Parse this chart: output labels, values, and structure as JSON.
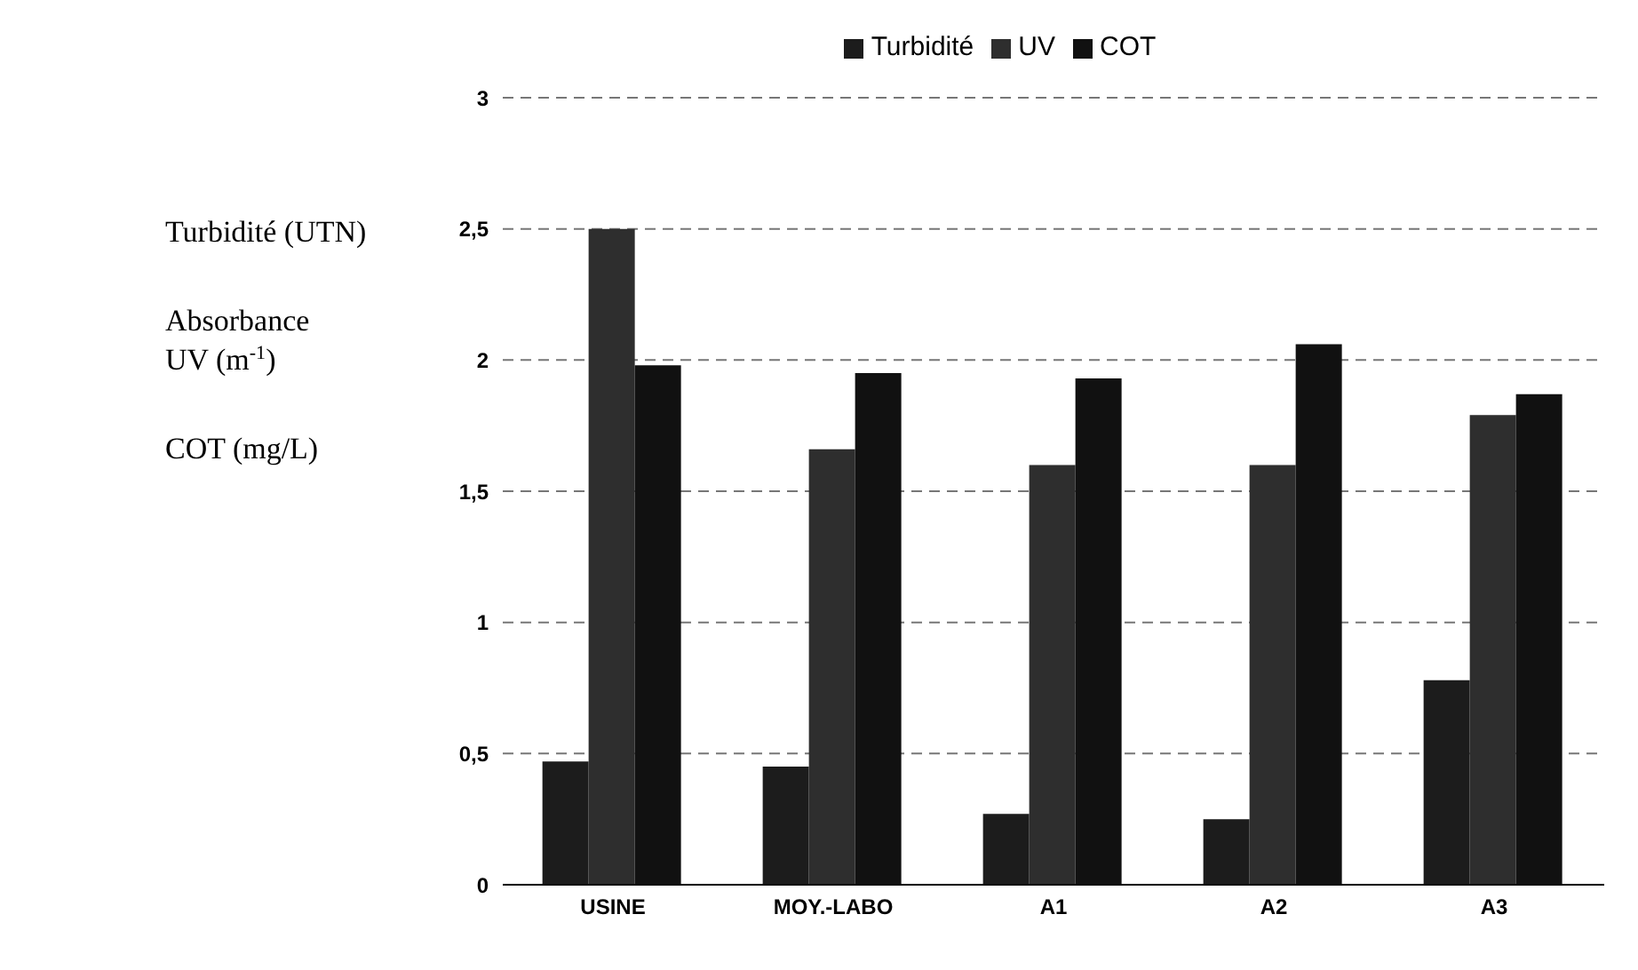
{
  "chart_data": {
    "type": "bar",
    "ylabel": "Turbidité (UTN)\nAbsorbance\nUV (m$^{-1}$)\nCOT (mg/L)",
    "categories": [
      "USINE",
      "MOY.-LABO",
      "A1",
      "A2",
      "A3"
    ],
    "series": [
      {
        "name": "Turbidité",
        "color": "#1c1c1c",
        "values": [
          0.47,
          0.45,
          0.27,
          0.25,
          0.78
        ]
      },
      {
        "name": "UV",
        "color": "#2e2e2e",
        "values": [
          2.5,
          1.66,
          1.6,
          1.6,
          1.79
        ]
      },
      {
        "name": "COT",
        "color": "#111111",
        "values": [
          1.98,
          1.95,
          1.93,
          2.06,
          1.87
        ]
      }
    ],
    "ylim": [
      0,
      3
    ],
    "yticks": [
      0,
      {
        "value": 0.5,
        "label": "0,5"
      },
      1,
      {
        "value": 1.5,
        "label": "1,5"
      },
      2,
      {
        "value": 2.5,
        "label": "2,5"
      },
      3
    ],
    "grid": "y",
    "legend": "top"
  }
}
